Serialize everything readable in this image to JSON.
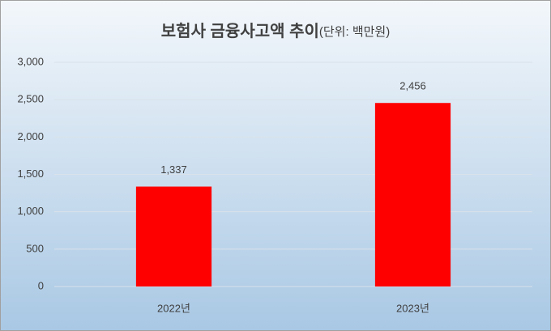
{
  "chart_data": {
    "type": "bar",
    "title": "보험사 금융사고액 추이",
    "subtitle": "(단위: 백만원)",
    "categories": [
      "2022년",
      "2023년"
    ],
    "values": [
      1337,
      2456
    ],
    "value_labels": [
      "1,337",
      "2,456"
    ],
    "color": "#ff0000",
    "ylim": [
      0,
      3000
    ],
    "yticks": [
      0,
      500,
      {
        "value": 1000,
        "label": "1,000"
      },
      {
        "value": 1500,
        "label": "1,500"
      },
      {
        "value": 2000,
        "label": "2,000"
      },
      {
        "value": 2500,
        "label": "2,500"
      },
      {
        "value": 3000,
        "label": "3,000"
      }
    ],
    "grid": true
  }
}
